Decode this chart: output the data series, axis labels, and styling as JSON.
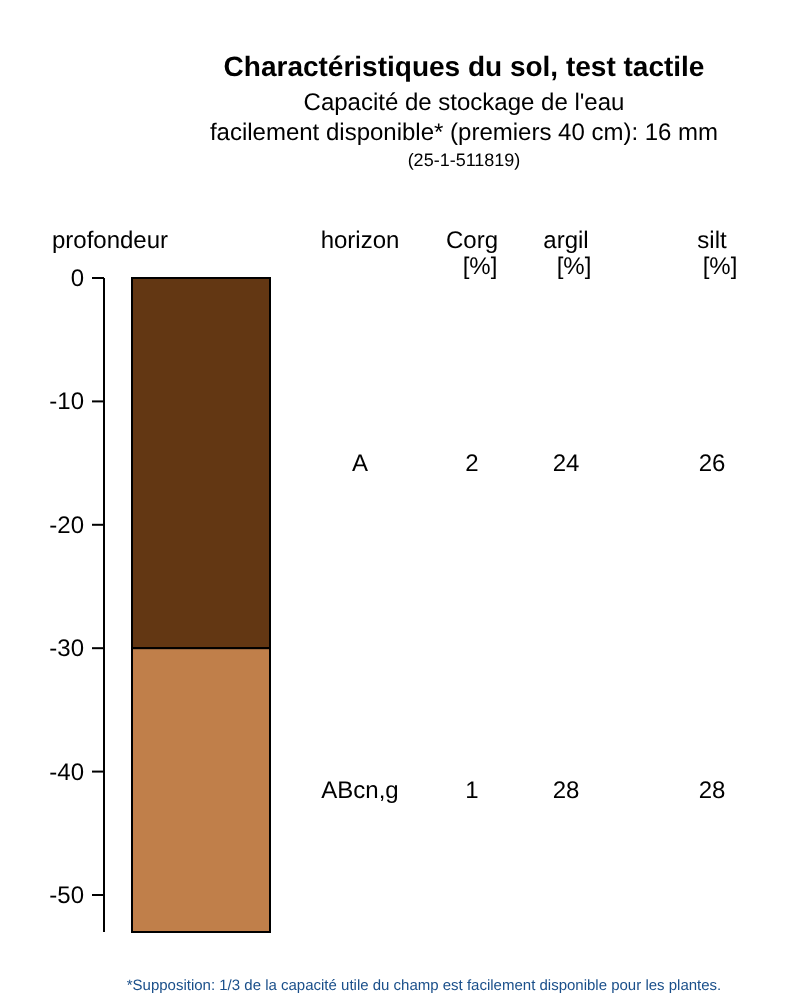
{
  "chart_data": {
    "type": "bar",
    "title": "Charactéristiques du sol, test tactile",
    "subtitle": "Capacité de stockage de l'eau\nfacilement disponible* (premiers 40 cm): 16 mm\n(25-1-511819)",
    "ylabel": "profondeur",
    "categories": [
      null
    ],
    "stacked": true,
    "series": [
      {
        "name": "A",
        "color": "#633713",
        "values": [
          -30
        ]
      },
      {
        "name": "ABcn,g",
        "color": "#c07f4a",
        "values": [
          -23
        ]
      }
    ],
    "ylim": [
      -53,
      0
    ],
    "yticks": [
      0,
      -10,
      -20,
      -30,
      -40,
      -50
    ],
    "annotations": [
      "horizon",
      "Corg\n[%]",
      "argil\n[%]",
      "silt\n[%]",
      "2",
      "24",
      "26",
      "1",
      "28",
      "28",
      "*Supposition: 1/3 de la capacité utile du champ est facilement disponible pour les plantes."
    ]
  }
}
